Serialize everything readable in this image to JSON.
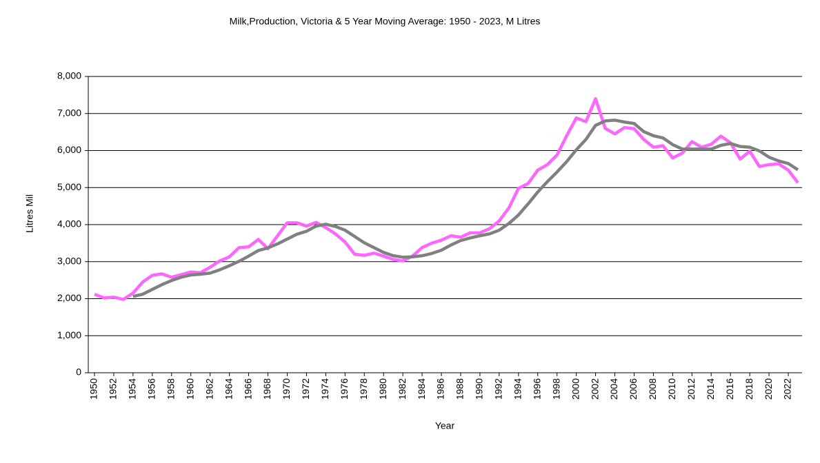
{
  "chart_data": {
    "type": "line",
    "title": "Milk,Production, Victoria & 5 Year Moving Average: 1950 - 2023, M Litres",
    "x_label": "Year",
    "y_label": "Litres Mil",
    "x": [
      1950,
      1951,
      1952,
      1953,
      1954,
      1955,
      1956,
      1957,
      1958,
      1959,
      1960,
      1961,
      1962,
      1963,
      1964,
      1965,
      1966,
      1967,
      1968,
      1969,
      1970,
      1971,
      1972,
      1973,
      1974,
      1975,
      1976,
      1977,
      1978,
      1979,
      1980,
      1981,
      1982,
      1983,
      1984,
      1985,
      1986,
      1987,
      1988,
      1989,
      1990,
      1991,
      1992,
      1993,
      1994,
      1995,
      1996,
      1997,
      1998,
      1999,
      2000,
      2001,
      2002,
      2003,
      2004,
      2005,
      2006,
      2007,
      2008,
      2009,
      2010,
      2011,
      2012,
      2013,
      2014,
      2015,
      2016,
      2017,
      2018,
      2019,
      2020,
      2021,
      2022,
      2023
    ],
    "series": [
      {
        "color": "#ff66ff",
        "values": [
          2120,
          2020,
          2040,
          1980,
          2150,
          2450,
          2630,
          2670,
          2580,
          2650,
          2720,
          2700,
          2850,
          3020,
          3130,
          3380,
          3400,
          3600,
          3350,
          3700,
          4050,
          4050,
          3960,
          4060,
          3920,
          3750,
          3530,
          3200,
          3170,
          3230,
          3150,
          3060,
          3020,
          3150,
          3380,
          3500,
          3580,
          3700,
          3660,
          3780,
          3780,
          3890,
          4100,
          4450,
          4980,
          5110,
          5470,
          5620,
          5880,
          6400,
          6880,
          6780,
          7400,
          6600,
          6450,
          6620,
          6590,
          6300,
          6090,
          6130,
          5800,
          5930,
          6240,
          6090,
          6170,
          6390,
          6210,
          5770,
          5980,
          5570,
          5620,
          5640,
          5470,
          5130
        ]
      },
      {
        "color": "#808080",
        "values": [
          null,
          null,
          null,
          null,
          2060,
          2120,
          2250,
          2380,
          2490,
          2580,
          2640,
          2660,
          2690,
          2780,
          2890,
          3010,
          3150,
          3300,
          3370,
          3480,
          3610,
          3740,
          3820,
          3960,
          4010,
          3950,
          3850,
          3680,
          3510,
          3380,
          3250,
          3160,
          3120,
          3130,
          3160,
          3220,
          3310,
          3450,
          3570,
          3640,
          3700,
          3750,
          3850,
          4030,
          4260,
          4560,
          4880,
          5160,
          5420,
          5700,
          6020,
          6300,
          6680,
          6800,
          6820,
          6770,
          6730,
          6510,
          6400,
          6340,
          6160,
          6040,
          6040,
          6040,
          6040,
          6140,
          6190,
          6110,
          6090,
          5990,
          5820,
          5720,
          5650,
          5480
        ]
      }
    ],
    "xlim": [
      1950,
      2023
    ],
    "xticks": [
      1950,
      1952,
      1954,
      1956,
      1958,
      1960,
      1962,
      1964,
      1966,
      1968,
      1970,
      1972,
      1974,
      1976,
      1978,
      1980,
      1982,
      1984,
      1986,
      1988,
      1990,
      1992,
      1994,
      1996,
      1998,
      2000,
      2002,
      2004,
      2006,
      2008,
      2010,
      2012,
      2014,
      2016,
      2018,
      2020,
      2022
    ],
    "ylim": [
      0,
      8000
    ],
    "yticks": [
      0,
      {
        "value": 1000,
        "label": "1,000"
      },
      {
        "value": 2000,
        "label": "2,000"
      },
      {
        "value": 3000,
        "label": "3,000"
      },
      {
        "value": 4000,
        "label": "4,000"
      },
      {
        "value": 5000,
        "label": "5,000"
      },
      {
        "value": 6000,
        "label": "6,000"
      },
      {
        "value": 7000,
        "label": "7,000"
      },
      {
        "value": 8000,
        "label": "8,000"
      }
    ],
    "grid": true
  }
}
